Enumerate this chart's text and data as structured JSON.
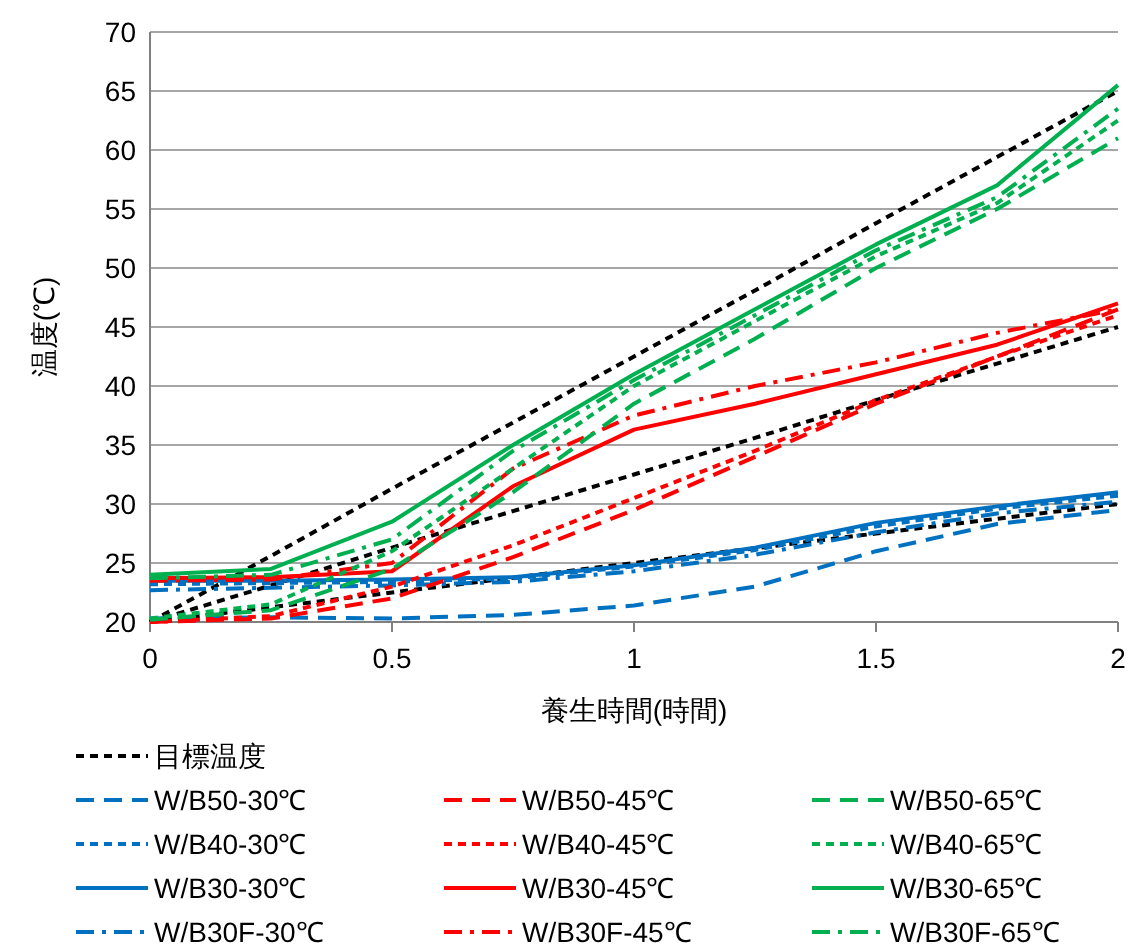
{
  "chart_data": {
    "type": "line",
    "xlabel": "養生時間(時間)",
    "ylabel": "温度(℃)",
    "x": [
      0,
      0.25,
      0.5,
      0.75,
      1,
      1.25,
      1.5,
      1.75,
      2
    ],
    "xlim": [
      0,
      2
    ],
    "xticks": [
      0,
      0.5,
      1,
      1.5,
      2
    ],
    "ylim": [
      20,
      70
    ],
    "yticks": [
      20,
      25,
      30,
      35,
      40,
      45,
      50,
      55,
      60,
      65,
      70
    ],
    "grid": "y",
    "legend": "bottom",
    "marker": "none",
    "series": [
      {
        "name": "目標温度",
        "color": "#000000",
        "line_style": "dotted",
        "values": [
          20,
          21.25,
          22.5,
          23.75,
          25,
          26.25,
          27.5,
          28.75,
          30
        ]
      },
      {
        "color": "#000000",
        "line_style": "dotted",
        "values": [
          20,
          23.1,
          26.3,
          29.4,
          32.5,
          35.6,
          38.8,
          41.9,
          45
        ]
      },
      {
        "color": "#000000",
        "line_style": "dotted",
        "values": [
          20,
          25.6,
          31.3,
          36.9,
          42.5,
          48.1,
          53.8,
          59.4,
          65
        ]
      },
      {
        "name": "W/B50-30℃",
        "color": "#0070c0",
        "line_style": "dashed",
        "values": [
          20.3,
          20.4,
          20.3,
          20.6,
          21.4,
          23,
          26,
          28.3,
          29.5
        ]
      },
      {
        "name": "W/B40-30℃",
        "color": "#0070c0",
        "line_style": "dotted",
        "values": [
          23.2,
          23.3,
          23.4,
          23.7,
          24.7,
          26.1,
          28.1,
          29.6,
          30.7
        ]
      },
      {
        "name": "W/B30-30℃",
        "color": "#0070c0",
        "line_style": "solid",
        "values": [
          23.5,
          23.5,
          23.6,
          23.8,
          24.8,
          26.3,
          28.4,
          29.8,
          31
        ]
      },
      {
        "name": "W/B30F-30℃",
        "color": "#0070c0",
        "line_style": "dashdot",
        "values": [
          22.7,
          22.9,
          23.1,
          23.4,
          24.3,
          25.7,
          27.6,
          29.2,
          30.2
        ]
      },
      {
        "name": "W/B50-45℃",
        "color": "#ff0000",
        "line_style": "dashed",
        "values": [
          20,
          20.3,
          22,
          25.5,
          29.5,
          34,
          38.5,
          42.5,
          46.5
        ]
      },
      {
        "name": "W/B40-45℃",
        "color": "#ff0000",
        "line_style": "dotted",
        "values": [
          20,
          20.5,
          23,
          26.5,
          30.5,
          34.5,
          38.8,
          42.5,
          46
        ]
      },
      {
        "name": "W/B30-45℃",
        "color": "#ff0000",
        "line_style": "solid",
        "values": [
          23.7,
          23.8,
          24.3,
          31.5,
          36.3,
          38.5,
          41,
          43.5,
          47
        ]
      },
      {
        "name": "W/B30F-45℃",
        "color": "#ff0000",
        "line_style": "dashdot",
        "values": [
          23.5,
          23.6,
          25,
          33,
          37.5,
          40,
          42,
          44.5,
          46.5
        ]
      },
      {
        "name": "W/B50-65℃",
        "color": "#00b050",
        "line_style": "dashed",
        "values": [
          20.2,
          21,
          24.5,
          31,
          38.5,
          44,
          50,
          55,
          61
        ]
      },
      {
        "name": "W/B40-65℃",
        "color": "#00b050",
        "line_style": "dotted",
        "values": [
          20.3,
          21.5,
          26,
          33,
          40,
          45.5,
          51,
          55.5,
          62.5
        ]
      },
      {
        "name": "W/B30-65℃",
        "color": "#00b050",
        "line_style": "solid",
        "values": [
          24,
          24.5,
          28.5,
          35,
          41,
          46.5,
          52,
          57,
          65.5
        ]
      },
      {
        "name": "W/B30F-65℃",
        "color": "#00b050",
        "line_style": "dashdot",
        "values": [
          23.7,
          24,
          27,
          34.5,
          40.5,
          46,
          51.5,
          56,
          63.5
        ]
      }
    ]
  }
}
